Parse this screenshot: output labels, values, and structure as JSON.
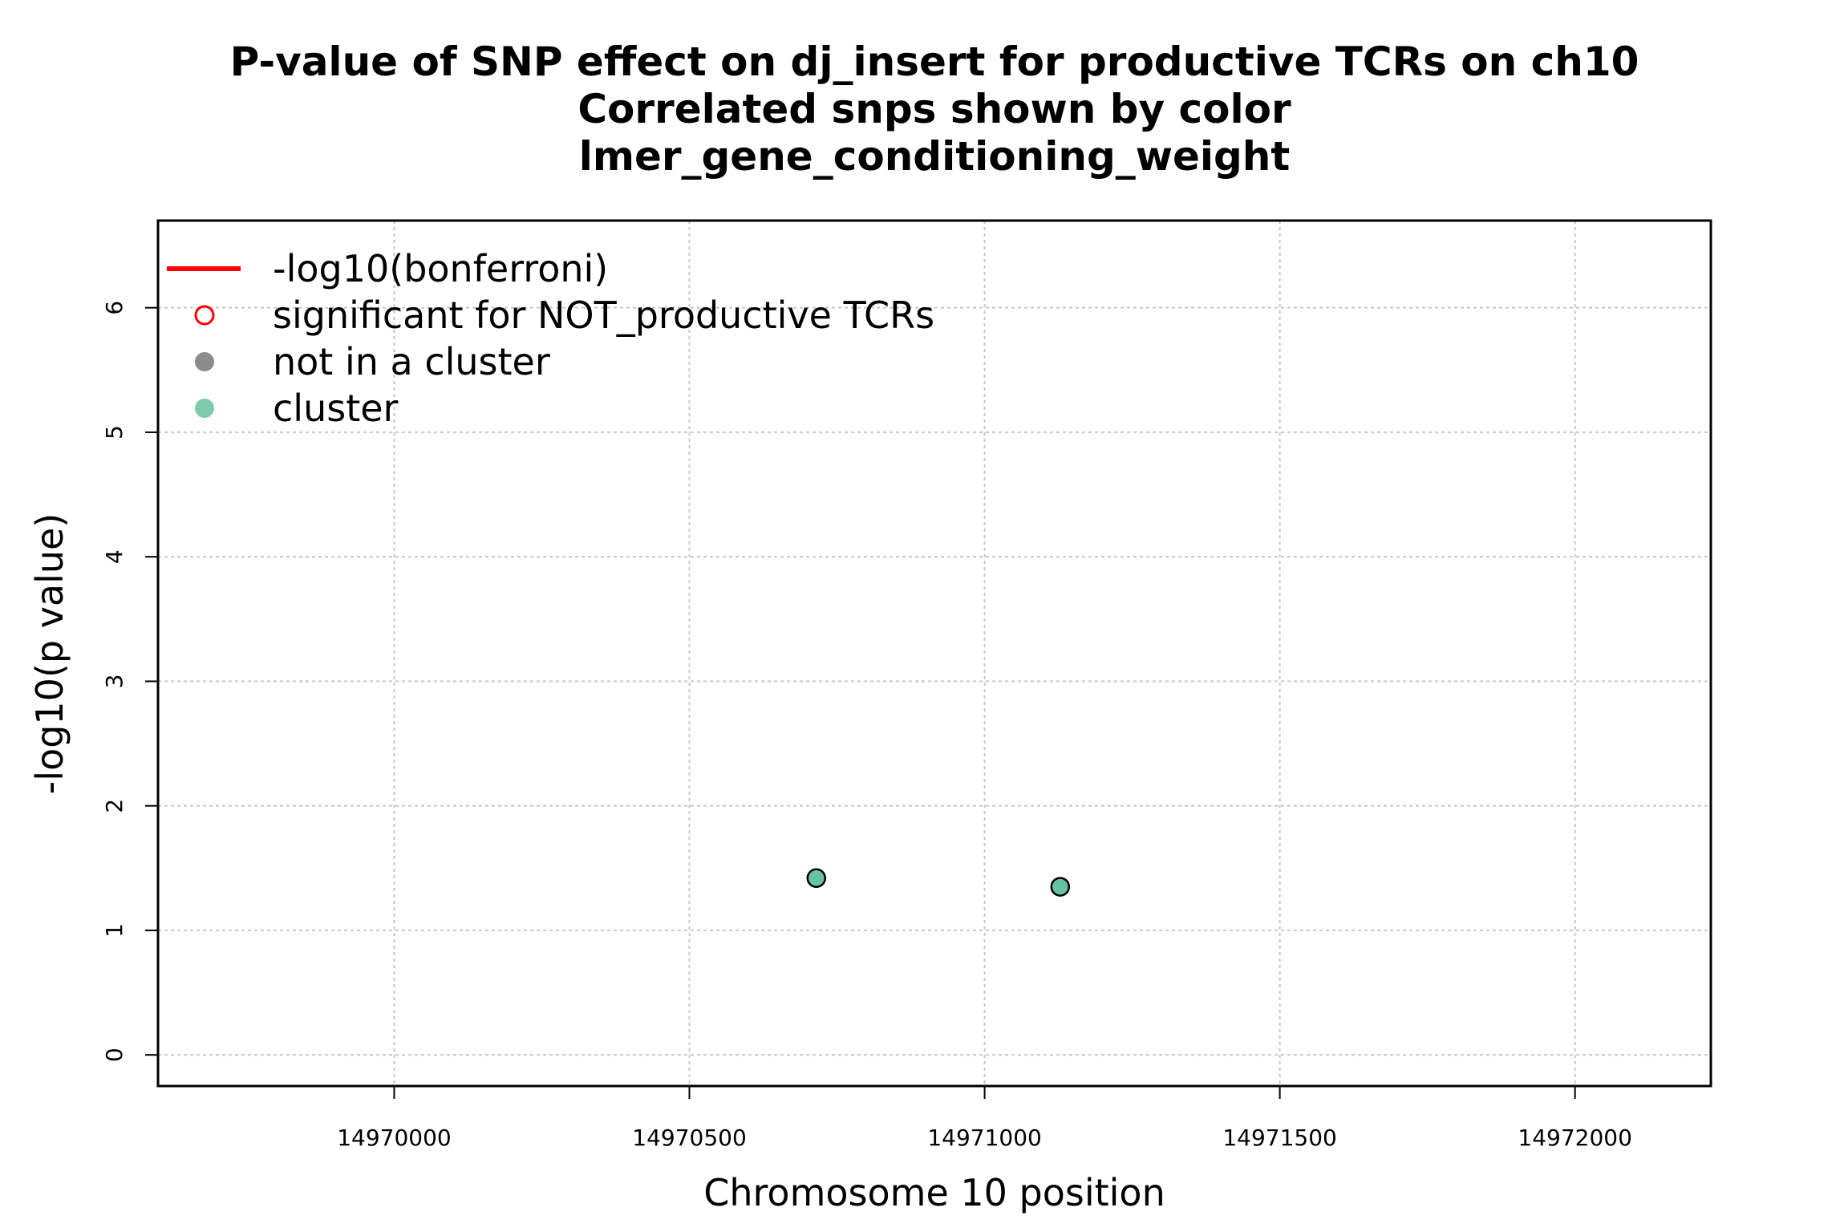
{
  "chart_data": {
    "type": "scatter",
    "title": [
      "P-value of SNP effect on dj_insert for productive TCRs on ch10",
      "Correlated snps shown by color",
      "lmer_gene_conditioning_weight"
    ],
    "xlabel": "Chromosome 10 position",
    "ylabel": "-log10(p value)",
    "xlim": [
      14969600,
      14972230
    ],
    "ylim": [
      -0.25,
      6.7
    ],
    "xticks": [
      14970000,
      14970500,
      14971000,
      14971500,
      14972000
    ],
    "yticks": [
      0,
      1,
      2,
      3,
      4,
      5,
      6
    ],
    "grid": true,
    "legend_position": "top-left",
    "legend": [
      {
        "label": "-log10(bonferroni)",
        "symbol": "line",
        "color": "#ff0000"
      },
      {
        "label": "significant for NOT_productive TCRs",
        "symbol": "open-circle",
        "color": "#ff0000"
      },
      {
        "label": "not in a cluster",
        "symbol": "filled-circle",
        "color": "#8c8c8c"
      },
      {
        "label": "cluster",
        "symbol": "filled-circle",
        "color": "#7fc9ad"
      }
    ],
    "series": [
      {
        "color": "#66c2a5",
        "points": [
          {
            "x": 14970715,
            "y": 1.42
          },
          {
            "x": 14971128,
            "y": 1.35
          }
        ]
      }
    ]
  }
}
